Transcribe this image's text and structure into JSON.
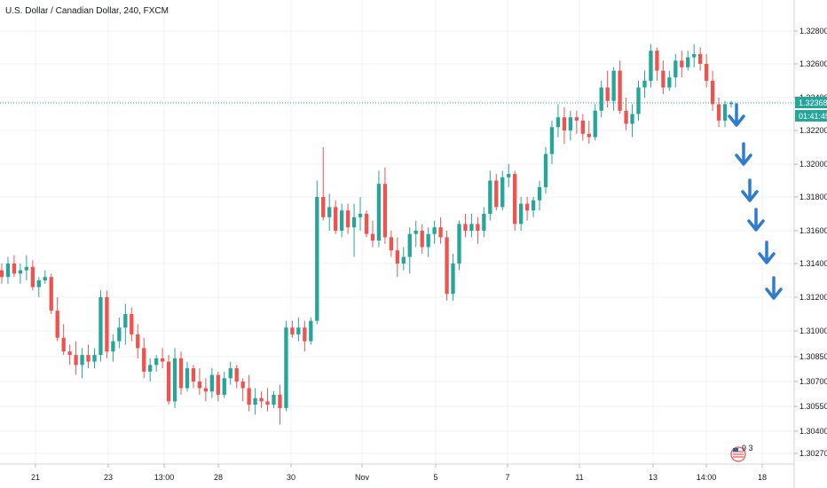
{
  "chart_data": {
    "type": "candlestick",
    "title": "U.S. Dollar / Canadian Dollar, 240, FXCM",
    "y_ticks": [
      "1.32800",
      "1.32600",
      "1.32400",
      "1.32200",
      "1.32000",
      "1.31800",
      "1.31600",
      "1.31400",
      "1.31200",
      "1.31000",
      "1.30850",
      "1.30700",
      "1.30550",
      "1.30400",
      "1.30270"
    ],
    "x_ticks": [
      "21",
      "23",
      "13:00",
      "28",
      "30",
      "Nov",
      "5",
      "7",
      "11",
      "13",
      "14:00",
      "18"
    ],
    "current_price": "1.32368",
    "countdown": "01:41:45",
    "grid": true,
    "colors": {
      "up": "#26a69a",
      "down": "#ef5350",
      "arrow": "#2e7bcf",
      "price_line": "#26a69a"
    },
    "arrows_count": 6,
    "badge_icon": "us-flag-calendar-icon",
    "badge_text": "9 3",
    "ohlc": [
      [
        1.3136,
        1.314,
        1.3128,
        1.3132
      ],
      [
        1.3132,
        1.3144,
        1.3128,
        1.314
      ],
      [
        1.314,
        1.3145,
        1.3132,
        1.3134
      ],
      [
        1.3134,
        1.314,
        1.3128,
        1.3136
      ],
      [
        1.3136,
        1.3145,
        1.313,
        1.3138
      ],
      [
        1.3138,
        1.3142,
        1.3124,
        1.3126
      ],
      [
        1.3126,
        1.3132,
        1.312,
        1.313
      ],
      [
        1.313,
        1.3136,
        1.3128,
        1.3132
      ],
      [
        1.3132,
        1.3134,
        1.311,
        1.3112
      ],
      [
        1.3112,
        1.312,
        1.3094,
        1.3096
      ],
      [
        1.3096,
        1.3104,
        1.3086,
        1.3088
      ],
      [
        1.3088,
        1.3092,
        1.308,
        1.3086
      ],
      [
        1.3086,
        1.3094,
        1.3074,
        1.308
      ],
      [
        1.308,
        1.309,
        1.3072,
        1.3086
      ],
      [
        1.3086,
        1.3092,
        1.3078,
        1.3082
      ],
      [
        1.3082,
        1.309,
        1.3078,
        1.3086
      ],
      [
        1.3086,
        1.3124,
        1.3082,
        1.312
      ],
      [
        1.312,
        1.3124,
        1.3084,
        1.3088
      ],
      [
        1.3088,
        1.3098,
        1.3082,
        1.3094
      ],
      [
        1.3094,
        1.3108,
        1.309,
        1.3102
      ],
      [
        1.3102,
        1.3116,
        1.3092,
        1.311
      ],
      [
        1.311,
        1.3114,
        1.3094,
        1.3098
      ],
      [
        1.3098,
        1.3104,
        1.3084,
        1.309
      ],
      [
        1.309,
        1.3096,
        1.3072,
        1.3076
      ],
      [
        1.3076,
        1.3084,
        1.307,
        1.308
      ],
      [
        1.308,
        1.3086,
        1.3076,
        1.3084
      ],
      [
        1.3084,
        1.309,
        1.3078,
        1.3082
      ],
      [
        1.3082,
        1.3086,
        1.3056,
        1.3058
      ],
      [
        1.3058,
        1.309,
        1.3054,
        1.3084
      ],
      [
        1.3084,
        1.3088,
        1.3062,
        1.3066
      ],
      [
        1.3066,
        1.3082,
        1.3064,
        1.3078
      ],
      [
        1.3078,
        1.308,
        1.3066,
        1.307
      ],
      [
        1.307,
        1.3078,
        1.3062,
        1.3066
      ],
      [
        1.3066,
        1.3072,
        1.3058,
        1.3064
      ],
      [
        1.3064,
        1.3078,
        1.306,
        1.3074
      ],
      [
        1.3074,
        1.3076,
        1.3058,
        1.3062
      ],
      [
        1.3062,
        1.3076,
        1.306,
        1.3072
      ],
      [
        1.3072,
        1.3082,
        1.3068,
        1.3078
      ],
      [
        1.3078,
        1.308,
        1.3066,
        1.307
      ],
      [
        1.307,
        1.3072,
        1.3058,
        1.3066
      ],
      [
        1.3066,
        1.3074,
        1.3052,
        1.3056
      ],
      [
        1.3056,
        1.3066,
        1.305,
        1.306
      ],
      [
        1.306,
        1.3064,
        1.3054,
        1.3058
      ],
      [
        1.3058,
        1.3066,
        1.3052,
        1.3056
      ],
      [
        1.3056,
        1.3064,
        1.3054,
        1.3062
      ],
      [
        1.3062,
        1.3068,
        1.3044,
        1.3054
      ],
      [
        1.3054,
        1.3106,
        1.3052,
        1.3102
      ],
      [
        1.3102,
        1.3106,
        1.3096,
        1.3098
      ],
      [
        1.3098,
        1.3108,
        1.3094,
        1.3102
      ],
      [
        1.3102,
        1.3106,
        1.3088,
        1.3094
      ],
      [
        1.3094,
        1.3108,
        1.3092,
        1.3106
      ],
      [
        1.3106,
        1.319,
        1.3104,
        1.318
      ],
      [
        1.318,
        1.321,
        1.3166,
        1.3168
      ],
      [
        1.3168,
        1.3182,
        1.316,
        1.3174
      ],
      [
        1.3174,
        1.3178,
        1.3158,
        1.316
      ],
      [
        1.316,
        1.3176,
        1.3156,
        1.3172
      ],
      [
        1.3172,
        1.3176,
        1.3158,
        1.3162
      ],
      [
        1.3162,
        1.3176,
        1.3144,
        1.3168
      ],
      [
        1.3168,
        1.318,
        1.316,
        1.317
      ],
      [
        1.317,
        1.3172,
        1.3156,
        1.3158
      ],
      [
        1.3158,
        1.3166,
        1.315,
        1.3154
      ],
      [
        1.3154,
        1.3196,
        1.315,
        1.3188
      ],
      [
        1.3188,
        1.3198,
        1.3152,
        1.3156
      ],
      [
        1.3156,
        1.316,
        1.3144,
        1.3148
      ],
      [
        1.3148,
        1.3156,
        1.3132,
        1.314
      ],
      [
        1.314,
        1.315,
        1.3136,
        1.3144
      ],
      [
        1.3144,
        1.3162,
        1.3134,
        1.3158
      ],
      [
        1.3158,
        1.3166,
        1.315,
        1.316
      ],
      [
        1.316,
        1.3164,
        1.3146,
        1.315
      ],
      [
        1.315,
        1.3162,
        1.3144,
        1.3158
      ],
      [
        1.3158,
        1.3166,
        1.3152,
        1.3162
      ],
      [
        1.3162,
        1.3168,
        1.3152,
        1.3156
      ],
      [
        1.3156,
        1.316,
        1.3118,
        1.3122
      ],
      [
        1.3122,
        1.3146,
        1.3118,
        1.314
      ],
      [
        1.314,
        1.3166,
        1.3136,
        1.3164
      ],
      [
        1.3164,
        1.317,
        1.3156,
        1.316
      ],
      [
        1.316,
        1.317,
        1.3156,
        1.3164
      ],
      [
        1.3164,
        1.3168,
        1.3152,
        1.316
      ],
      [
        1.316,
        1.3174,
        1.3156,
        1.317
      ],
      [
        1.317,
        1.3196,
        1.3166,
        1.319
      ],
      [
        1.319,
        1.3194,
        1.3172,
        1.3174
      ],
      [
        1.3174,
        1.3196,
        1.3172,
        1.3192
      ],
      [
        1.3192,
        1.32,
        1.3186,
        1.3194
      ],
      [
        1.3194,
        1.3196,
        1.316,
        1.3164
      ],
      [
        1.3164,
        1.318,
        1.316,
        1.3176
      ],
      [
        1.3176,
        1.318,
        1.3166,
        1.3172
      ],
      [
        1.3172,
        1.318,
        1.3168,
        1.3178
      ],
      [
        1.3178,
        1.319,
        1.3172,
        1.3186
      ],
      [
        1.3186,
        1.321,
        1.3182,
        1.3206
      ],
      [
        1.3206,
        1.3226,
        1.32,
        1.3222
      ],
      [
        1.3222,
        1.3236,
        1.3216,
        1.3228
      ],
      [
        1.3228,
        1.3234,
        1.3212,
        1.322
      ],
      [
        1.322,
        1.3232,
        1.3214,
        1.3228
      ],
      [
        1.3228,
        1.3232,
        1.3218,
        1.3226
      ],
      [
        1.3226,
        1.323,
        1.3214,
        1.3218
      ],
      [
        1.3218,
        1.3226,
        1.3212,
        1.3216
      ],
      [
        1.3216,
        1.3236,
        1.3214,
        1.3232
      ],
      [
        1.3232,
        1.325,
        1.3228,
        1.3246
      ],
      [
        1.3246,
        1.3256,
        1.3234,
        1.3238
      ],
      [
        1.3238,
        1.3258,
        1.3232,
        1.3256
      ],
      [
        1.3256,
        1.3262,
        1.323,
        1.3232
      ],
      [
        1.3232,
        1.324,
        1.322,
        1.3224
      ],
      [
        1.3224,
        1.3236,
        1.3216,
        1.323
      ],
      [
        1.323,
        1.325,
        1.3226,
        1.3246
      ],
      [
        1.3246,
        1.3256,
        1.324,
        1.325
      ],
      [
        1.325,
        1.3272,
        1.3246,
        1.3268
      ],
      [
        1.3268,
        1.327,
        1.325,
        1.3256
      ],
      [
        1.3256,
        1.3262,
        1.3242,
        1.3246
      ],
      [
        1.3246,
        1.3256,
        1.3244,
        1.3252
      ],
      [
        1.3252,
        1.3266,
        1.3246,
        1.3262
      ],
      [
        1.3262,
        1.3268,
        1.3252,
        1.3258
      ],
      [
        1.3258,
        1.3268,
        1.3256,
        1.3264
      ],
      [
        1.3264,
        1.3272,
        1.3258,
        1.3266
      ],
      [
        1.3266,
        1.327,
        1.3256,
        1.326
      ],
      [
        1.326,
        1.3266,
        1.3246,
        1.325
      ],
      [
        1.325,
        1.3256,
        1.3232,
        1.3236
      ],
      [
        1.3236,
        1.324,
        1.3222,
        1.3226
      ],
      [
        1.3226,
        1.3238,
        1.3222,
        1.3236
      ],
      [
        1.3236,
        1.3238,
        1.3234,
        1.3237
      ]
    ]
  }
}
